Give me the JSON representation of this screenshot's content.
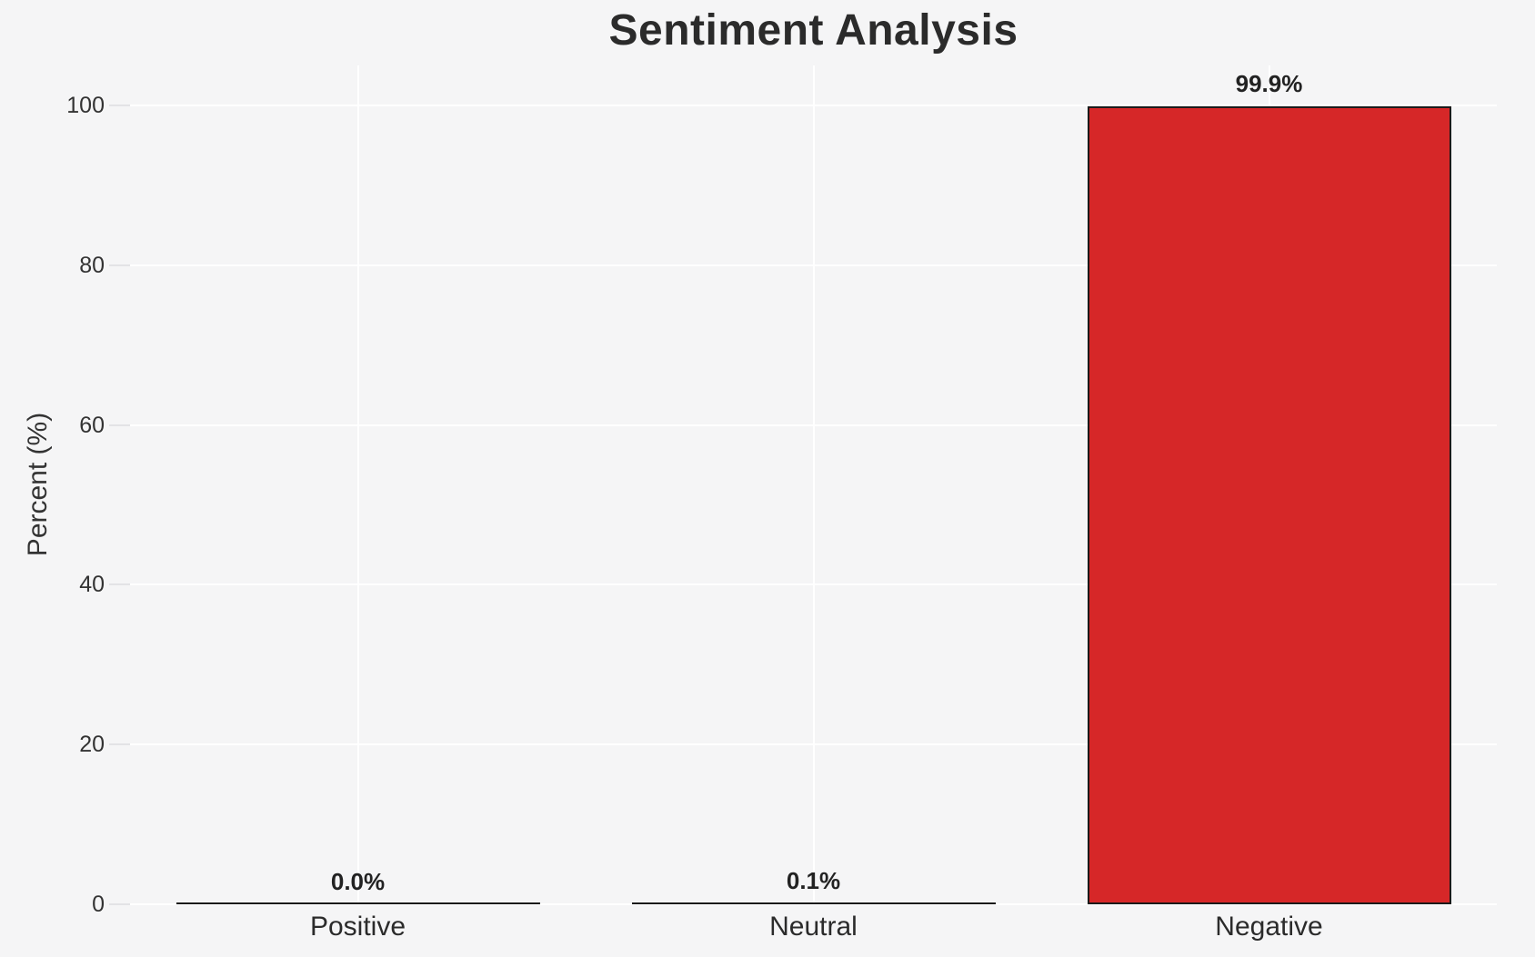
{
  "chart_data": {
    "type": "bar",
    "title": "Sentiment Analysis",
    "xlabel": "",
    "ylabel": "Percent (%)",
    "categories": [
      "Positive",
      "Neutral",
      "Negative"
    ],
    "values": [
      0.0,
      0.1,
      99.9
    ],
    "value_labels": [
      "0.0%",
      "0.1%",
      "99.9%"
    ],
    "yticks": [
      0,
      20,
      40,
      60,
      80,
      100
    ],
    "ylim": [
      0,
      105
    ],
    "grid": "horizontal and vertical white gridlines on light gray background",
    "legend": "none",
    "colors": {
      "background": "#f5f5f6",
      "gridline": "#ffffff",
      "bar_fill": "#d62728",
      "bar_edge": "#1a1a1a",
      "title_text": "#2b2b2b",
      "tick_text": "#333333",
      "tick_mark": "#e3e3e6"
    }
  }
}
